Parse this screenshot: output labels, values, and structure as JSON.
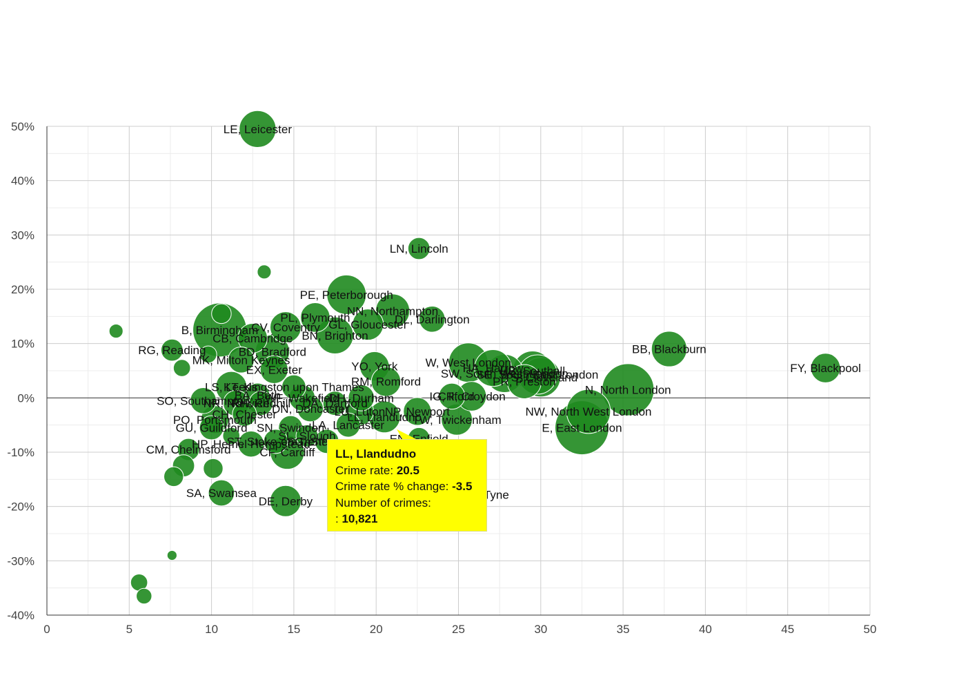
{
  "chart_data": {
    "type": "scatter",
    "title": "",
    "xlabel": "",
    "ylabel": "",
    "xlim": [
      0,
      50
    ],
    "ylim": [
      -40,
      50
    ],
    "x_ticks": [
      "0",
      "5",
      "10",
      "15",
      "20",
      "25",
      "30",
      "35",
      "40",
      "45",
      "50"
    ],
    "y_ticks": [
      "50%",
      "40%",
      "30%",
      "20%",
      "10%",
      "0%",
      "-10%",
      "-20%",
      "-30%",
      "-40%"
    ],
    "grid": true,
    "bubble_color": "#1f8a1f",
    "points": [
      {
        "label": "LE, Leicester",
        "x": 12.8,
        "y": 49.5,
        "size": 14000
      },
      {
        "label": "LN, Lincoln",
        "x": 22.6,
        "y": 27.5,
        "size": 5000
      },
      {
        "label": "",
        "x": 13.2,
        "y": 23.2,
        "size": 2000
      },
      {
        "label": "PE, Peterborough",
        "x": 18.2,
        "y": 19.0,
        "size": 16000
      },
      {
        "label": "NN, Northampton",
        "x": 21.0,
        "y": 16.0,
        "size": 12000
      },
      {
        "label": "DL, Darlington",
        "x": 23.4,
        "y": 14.5,
        "size": 7000
      },
      {
        "label": "PL, Plymouth",
        "x": 16.3,
        "y": 14.8,
        "size": 9000
      },
      {
        "label": "GL, Gloucester",
        "x": 19.5,
        "y": 13.5,
        "size": 10000
      },
      {
        "label": "BN, Brighton",
        "x": 17.5,
        "y": 11.5,
        "size": 14000
      },
      {
        "label": "B, Birmingham",
        "x": 10.5,
        "y": 12.5,
        "size": 30000
      },
      {
        "label": "CV, Coventry",
        "x": 14.5,
        "y": 13.0,
        "size": 10000
      },
      {
        "label": "CB, Cambridge",
        "x": 12.5,
        "y": 11.0,
        "size": 9000
      },
      {
        "label": "",
        "x": 10.6,
        "y": 15.5,
        "size": 4000
      },
      {
        "label": "",
        "x": 4.2,
        "y": 12.3,
        "size": 2000
      },
      {
        "label": "RG, Reading",
        "x": 7.6,
        "y": 8.8,
        "size": 5000
      },
      {
        "label": "BD, Bradford",
        "x": 13.7,
        "y": 8.5,
        "size": 12000
      },
      {
        "label": "MK, Milton Keynes",
        "x": 11.8,
        "y": 7.0,
        "size": 7000
      },
      {
        "label": "",
        "x": 9.8,
        "y": 8.0,
        "size": 3000
      },
      {
        "label": "",
        "x": 8.2,
        "y": 5.5,
        "size": 3000
      },
      {
        "label": "EX, Exeter",
        "x": 13.8,
        "y": 5.2,
        "size": 8000
      },
      {
        "label": "YO, York",
        "x": 19.9,
        "y": 5.8,
        "size": 9000
      },
      {
        "label": "RM, Romford",
        "x": 20.6,
        "y": 3.0,
        "size": 9000
      },
      {
        "label": "W, West London",
        "x": 25.6,
        "y": 6.5,
        "size": 16000
      },
      {
        "label": "HA, Harrow",
        "x": 27.1,
        "y": 5.5,
        "size": 14000
      },
      {
        "label": "SW, South West London",
        "x": 27.8,
        "y": 4.5,
        "size": 15000
      },
      {
        "label": "UB, Southall",
        "x": 29.5,
        "y": 5.0,
        "size": 16000
      },
      {
        "label": "TS, Cleveland",
        "x": 30.0,
        "y": 3.8,
        "size": 16000
      },
      {
        "label": "SE, South East London",
        "x": 29.8,
        "y": 4.3,
        "size": 16000
      },
      {
        "label": "PR, Preston",
        "x": 29.0,
        "y": 3.0,
        "size": 12000
      },
      {
        "label": "N, North London",
        "x": 35.3,
        "y": 1.5,
        "size": 28000
      },
      {
        "label": "BB, Blackburn",
        "x": 37.8,
        "y": 9.0,
        "size": 13000
      },
      {
        "label": "FY, Blackpool",
        "x": 47.3,
        "y": 5.5,
        "size": 9000
      },
      {
        "label": "IG, Ilford",
        "x": 24.6,
        "y": 0.3,
        "size": 7000
      },
      {
        "label": "CR, Croydon",
        "x": 25.8,
        "y": 0.3,
        "size": 9000
      },
      {
        "label": "NW, North West London",
        "x": 32.9,
        "y": -2.5,
        "size": 20000
      },
      {
        "label": "E, East London",
        "x": 32.5,
        "y": -5.5,
        "size": 30000
      },
      {
        "label": "TW, Twickenham",
        "x": 24.9,
        "y": -4.0,
        "size": 10000
      },
      {
        "label": "NP, Newport",
        "x": 22.5,
        "y": -2.5,
        "size": 8000
      },
      {
        "label": "LL, Llandudno",
        "x": 20.5,
        "y": -3.5,
        "size": 10821
      },
      {
        "label": "LU, Luton",
        "x": 19.0,
        "y": -2.5,
        "size": 8000
      },
      {
        "label": "DH, Durham",
        "x": 19.1,
        "y": 0.0,
        "size": 7000
      },
      {
        "label": "LA, Lancaster",
        "x": 18.3,
        "y": -5.0,
        "size": 6000
      },
      {
        "label": "EN, Enfield",
        "x": 22.6,
        "y": -7.5,
        "size": 5000
      },
      {
        "label": "SG, Stevenage",
        "x": 17.0,
        "y": -8.0,
        "size": 6000
      },
      {
        "label": "SN, Swindon",
        "x": 14.8,
        "y": -5.5,
        "size": 6000
      },
      {
        "label": "DA, Dartford",
        "x": 17.5,
        "y": -1.0,
        "size": 6000
      },
      {
        "label": "DN, Doncaster",
        "x": 16.0,
        "y": -2.0,
        "size": 7000
      },
      {
        "label": "WF, Wakefield",
        "x": 15.5,
        "y": 0.0,
        "size": 7000
      },
      {
        "label": "KT, Kingston upon Thames",
        "x": 15.0,
        "y": 2.0,
        "size": 6000
      },
      {
        "label": "BA, Bath",
        "x": 12.8,
        "y": 0.5,
        "size": 6000
      },
      {
        "label": "LS, Leeds",
        "x": 11.2,
        "y": 2.0,
        "size": 10000
      },
      {
        "label": "RH, Redhill",
        "x": 13.0,
        "y": -1.0,
        "size": 6000
      },
      {
        "label": "NR, Norwich",
        "x": 11.5,
        "y": -1.0,
        "size": 7000
      },
      {
        "label": "CH, Chester",
        "x": 12.0,
        "y": -3.0,
        "size": 6000
      },
      {
        "label": "PO, Portsmouth",
        "x": 10.2,
        "y": -4.0,
        "size": 8000
      },
      {
        "label": "SO, Southampton",
        "x": 9.5,
        "y": -0.5,
        "size": 7000
      },
      {
        "label": "GU, Guildford",
        "x": 10.0,
        "y": -5.5,
        "size": 6000
      },
      {
        "label": "HP, Hemel Hempstead",
        "x": 12.4,
        "y": -8.5,
        "size": 7000
      },
      {
        "label": "CF, Cardiff",
        "x": 14.6,
        "y": -10.0,
        "size": 12000
      },
      {
        "label": "SL, Slough",
        "x": 15.8,
        "y": -7.0,
        "size": 5000
      },
      {
        "label": "ST, Stoke-on-Trent",
        "x": 13.9,
        "y": -8.0,
        "size": 6000
      },
      {
        "label": "CM, Chelmsford",
        "x": 8.6,
        "y": -9.5,
        "size": 5000
      },
      {
        "label": "",
        "x": 11.2,
        "y": -7.0,
        "size": 3000
      },
      {
        "label": "",
        "x": 8.3,
        "y": -12.5,
        "size": 5000
      },
      {
        "label": "",
        "x": 10.1,
        "y": -13.0,
        "size": 4000
      },
      {
        "label": "",
        "x": 7.7,
        "y": -14.5,
        "size": 4000
      },
      {
        "label": "SA, Swansea",
        "x": 10.6,
        "y": -17.5,
        "size": 7000
      },
      {
        "label": "DE, Derby",
        "x": 14.5,
        "y": -19.0,
        "size": 10000
      },
      {
        "label": "",
        "x": 7.6,
        "y": -29.0,
        "size": 1000
      },
      {
        "label": "",
        "x": 5.6,
        "y": -34.0,
        "size": 3000
      },
      {
        "label": "",
        "x": 5.9,
        "y": -36.5,
        "size": 2500
      }
    ],
    "extra_labels": [
      {
        "text": "Tyne",
        "x": 27.3,
        "y": -17.8
      }
    ],
    "tooltip": {
      "title": "LL, Llandudno",
      "rate_label": "Crime rate:",
      "rate_value": "20.5",
      "change_label": "Crime rate % change:",
      "change_value": "-3.5",
      "count_label": "Number of crimes:",
      "count_prefix": ":",
      "count_value": "10,821"
    }
  }
}
